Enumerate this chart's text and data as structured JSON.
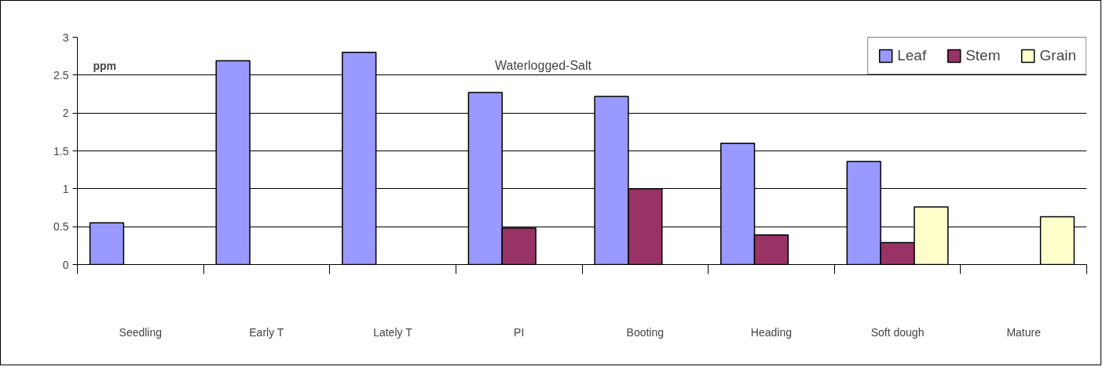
{
  "chart_data": {
    "type": "bar",
    "title": "Waterlogged-Salt",
    "ylabel": "ppm",
    "categories": [
      "Seedling",
      "Early T",
      "Lately T",
      "PI",
      "Booting",
      "Heading",
      "Soft dough",
      "Mature"
    ],
    "series": [
      {
        "name": "Leaf",
        "color": "#9999ff",
        "values": [
          0.55,
          2.69,
          2.8,
          2.27,
          2.22,
          1.6,
          1.36,
          null
        ]
      },
      {
        "name": "Stem",
        "color": "#993366",
        "values": [
          null,
          null,
          null,
          0.48,
          1.0,
          0.39,
          0.29,
          null
        ]
      },
      {
        "name": "Grain",
        "color": "#ffffcc",
        "values": [
          null,
          null,
          null,
          null,
          null,
          null,
          0.76,
          0.63
        ]
      }
    ],
    "ylim": [
      0,
      3
    ],
    "yticks": [
      0,
      0.5,
      1,
      1.5,
      2,
      2.5,
      3
    ],
    "grid": "y",
    "legend": "top right"
  }
}
